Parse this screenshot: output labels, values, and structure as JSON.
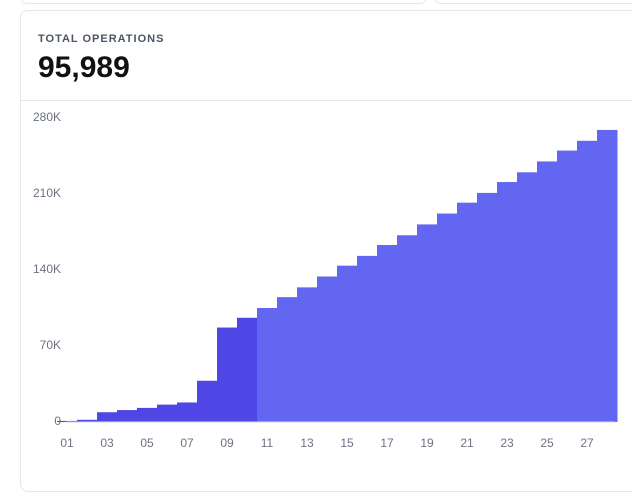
{
  "card": {
    "label": "TOTAL OPERATIONS",
    "total": "95,989"
  },
  "chart_data": {
    "type": "step-bar",
    "categories": [
      "01",
      null,
      "03",
      null,
      "05",
      null,
      "07",
      null,
      "09",
      null,
      "11",
      null,
      "13",
      null,
      "15",
      null,
      "17",
      null,
      "19",
      null,
      "21",
      null,
      "23",
      null,
      "25",
      null,
      "27",
      null
    ],
    "values": [
      1000,
      2000,
      9000,
      11000,
      13000,
      16000,
      18000,
      38000,
      87000,
      96000,
      105000,
      115000,
      124000,
      134000,
      144000,
      153000,
      163000,
      172000,
      182000,
      192000,
      202000,
      211000,
      221000,
      230000,
      240000,
      250000,
      259000,
      269000
    ],
    "colors": [
      "#4f46e5",
      "#4f46e5",
      "#4f46e5",
      "#4f46e5",
      "#4f46e5",
      "#4f46e5",
      "#4f46e5",
      "#4f46e5",
      "#4f46e5",
      "#4f46e5",
      "#6366f1",
      "#6366f1",
      "#6366f1",
      "#6366f1",
      "#6366f1",
      "#6366f1",
      "#6366f1",
      "#6366f1",
      "#6366f1",
      "#6366f1",
      "#6366f1",
      "#6366f1",
      "#6366f1",
      "#6366f1",
      "#6366f1",
      "#6366f1",
      "#6366f1",
      "#6366f1"
    ],
    "ylim": [
      0,
      280000
    ],
    "yticks": [
      0,
      {
        "value": 70000,
        "label": "70K"
      },
      {
        "value": 140000,
        "label": "140K"
      },
      {
        "value": 210000,
        "label": "210K"
      },
      {
        "value": 280000,
        "label": "280K"
      }
    ]
  }
}
